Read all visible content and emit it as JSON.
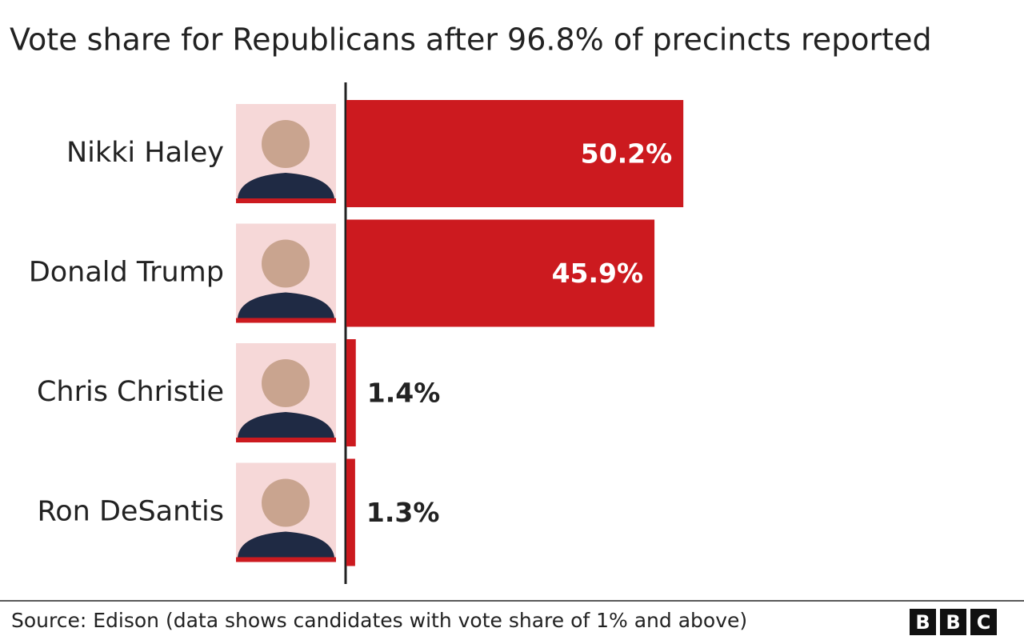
{
  "chart_data": {
    "type": "hbar",
    "title": "Vote share for Republicans after 96.8% of precincts reported",
    "categories": [
      "Nikki Haley",
      "Donald Trump",
      "Chris Christie",
      "Ron DeSantis"
    ],
    "values": [
      50.2,
      45.9,
      1.4,
      1.3
    ],
    "value_labels": [
      "50.2%",
      "45.9%",
      "1.4%",
      "1.3%"
    ],
    "color": "#cc1a1f",
    "xlim": [
      0,
      100
    ],
    "source": "Source: Edison (data shows candidates with vote share of 1% and above)",
    "logo": [
      "B",
      "B",
      "C"
    ]
  }
}
